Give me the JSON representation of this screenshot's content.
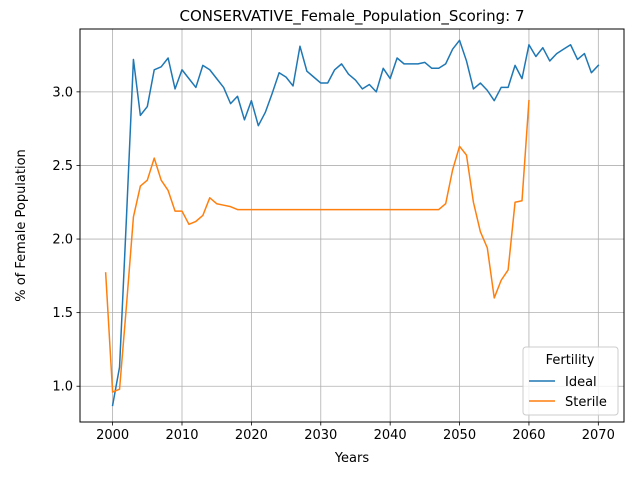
{
  "chart_data": {
    "type": "line",
    "title": "CONSERVATIVE_Female_Population_Scoring: 7",
    "xlabel": "Years",
    "ylabel": "% of Female Population",
    "xlim": [
      1995.3,
      2073.7
    ],
    "ylim": [
      0.757,
      3.427
    ],
    "xticks": [
      2000,
      2010,
      2020,
      2030,
      2040,
      2050,
      2060,
      2070
    ],
    "yticks": [
      1.0,
      1.5,
      2.0,
      2.5,
      3.0
    ],
    "ytick_labels": [
      "1.0",
      "1.5",
      "2.0",
      "2.5",
      "3.0"
    ],
    "grid": true,
    "legend": {
      "title": "Fertility",
      "placement": "bottom-right"
    },
    "series": [
      {
        "name": "Ideal",
        "color": "#1f77b4",
        "x": [
          2000,
          2001,
          2002,
          2003,
          2004,
          2005,
          2006,
          2007,
          2008,
          2009,
          2010,
          2011,
          2012,
          2013,
          2014,
          2015,
          2016,
          2017,
          2018,
          2019,
          2020,
          2021,
          2022,
          2023,
          2024,
          2025,
          2026,
          2027,
          2028,
          2029,
          2030,
          2031,
          2032,
          2033,
          2034,
          2035,
          2036,
          2037,
          2038,
          2039,
          2040,
          2041,
          2042,
          2043,
          2044,
          2045,
          2046,
          2047,
          2048,
          2049,
          2050,
          2051,
          2052,
          2053,
          2054,
          2055,
          2056,
          2057,
          2058,
          2059,
          2060,
          2061,
          2062,
          2063,
          2064,
          2065,
          2066,
          2067,
          2068,
          2069,
          2070
        ],
        "values": [
          0.87,
          1.13,
          2.15,
          3.22,
          2.84,
          2.9,
          3.15,
          3.17,
          3.23,
          3.02,
          3.15,
          3.09,
          3.03,
          3.18,
          3.15,
          3.09,
          3.03,
          2.92,
          2.97,
          2.81,
          2.94,
          2.77,
          2.86,
          2.99,
          3.13,
          3.1,
          3.04,
          3.31,
          3.14,
          3.1,
          3.06,
          3.06,
          3.15,
          3.19,
          3.12,
          3.08,
          3.02,
          3.05,
          3.0,
          3.16,
          3.09,
          3.23,
          3.19,
          3.19,
          3.19,
          3.2,
          3.16,
          3.16,
          3.19,
          3.29,
          3.35,
          3.21,
          3.02,
          3.06,
          3.01,
          2.94,
          3.03,
          3.03,
          3.18,
          3.09,
          3.32,
          3.24,
          3.3,
          3.21,
          3.26,
          3.29,
          3.32,
          3.22,
          3.26,
          3.13,
          3.18
        ]
      },
      {
        "name": "Sterile",
        "color": "#ff7f0e",
        "x": [
          1999,
          2000,
          2001,
          2002,
          2003,
          2004,
          2005,
          2006,
          2007,
          2008,
          2009,
          2010,
          2011,
          2012,
          2013,
          2014,
          2015,
          2016,
          2017,
          2018,
          2019,
          2020,
          2021,
          2022,
          2023,
          2024,
          2025,
          2026,
          2027,
          2028,
          2029,
          2030,
          2031,
          2032,
          2033,
          2034,
          2035,
          2036,
          2037,
          2038,
          2039,
          2040,
          2041,
          2042,
          2043,
          2044,
          2045,
          2046,
          2047,
          2048,
          2049,
          2050,
          2051,
          2052,
          2053,
          2054,
          2055,
          2056,
          2057,
          2058,
          2059,
          2060
        ],
        "values": [
          1.77,
          0.96,
          0.98,
          1.55,
          2.15,
          2.36,
          2.4,
          2.55,
          2.4,
          2.33,
          2.19,
          2.19,
          2.1,
          2.12,
          2.16,
          2.28,
          2.24,
          2.23,
          2.22,
          2.2,
          2.2,
          2.2,
          2.2,
          2.2,
          2.2,
          2.2,
          2.2,
          2.2,
          2.2,
          2.2,
          2.2,
          2.2,
          2.2,
          2.2,
          2.2,
          2.2,
          2.2,
          2.2,
          2.2,
          2.2,
          2.2,
          2.2,
          2.2,
          2.2,
          2.2,
          2.2,
          2.2,
          2.2,
          2.2,
          2.24,
          2.47,
          2.63,
          2.57,
          2.25,
          2.05,
          1.94,
          1.6,
          1.72,
          1.79,
          2.25,
          2.26,
          2.94
        ]
      }
    ]
  }
}
